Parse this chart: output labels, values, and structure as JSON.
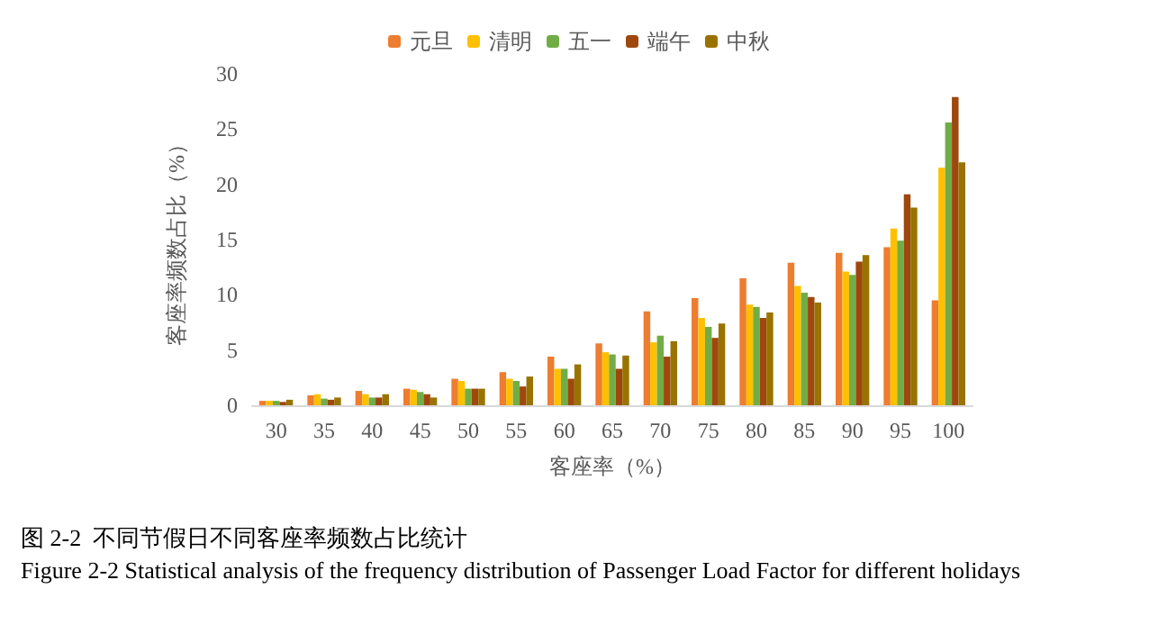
{
  "chart_data": {
    "type": "bar",
    "xlabel": "客座率（%）",
    "ylabel": "客座率频数占比（%）",
    "categories": [
      "30",
      "35",
      "40",
      "45",
      "50",
      "55",
      "60",
      "65",
      "70",
      "75",
      "80",
      "85",
      "90",
      "95",
      "100"
    ],
    "series": [
      {
        "name": "元旦",
        "color": "#ed7d31",
        "values": [
          0.4,
          0.9,
          1.3,
          1.5,
          2.4,
          3.0,
          4.4,
          5.6,
          8.5,
          9.7,
          11.5,
          12.9,
          13.8,
          14.3,
          9.5
        ]
      },
      {
        "name": "清明",
        "color": "#ffc000",
        "values": [
          0.4,
          1.0,
          1.0,
          1.4,
          2.2,
          2.4,
          3.3,
          4.8,
          5.7,
          7.9,
          9.1,
          10.8,
          12.1,
          16.0,
          21.5
        ]
      },
      {
        "name": "五一",
        "color": "#70ad47",
        "values": [
          0.4,
          0.6,
          0.7,
          1.2,
          1.5,
          2.2,
          3.3,
          4.6,
          6.3,
          7.1,
          8.9,
          10.2,
          11.8,
          14.9,
          25.6
        ]
      },
      {
        "name": "端午",
        "color": "#9e480e",
        "values": [
          0.3,
          0.5,
          0.7,
          1.0,
          1.5,
          1.7,
          2.4,
          3.3,
          4.4,
          6.1,
          7.9,
          9.8,
          13.0,
          19.1,
          27.9
        ]
      },
      {
        "name": "中秋",
        "color": "#997300",
        "values": [
          0.5,
          0.7,
          1.0,
          0.7,
          1.5,
          2.6,
          3.7,
          4.5,
          5.8,
          7.4,
          8.4,
          9.3,
          13.6,
          17.9,
          22.0
        ]
      }
    ],
    "ylim": [
      0,
      30
    ],
    "yticks": [
      0,
      5,
      10,
      15,
      20,
      25,
      30
    ],
    "grid": false,
    "legend": "top",
    "annotations": [
      "图 2-2  不同节假日不同客座率频数占比统计",
      "Figure 2-2 Statistical analysis of the frequency distribution of Passenger Load Factor for different holidays"
    ]
  }
}
